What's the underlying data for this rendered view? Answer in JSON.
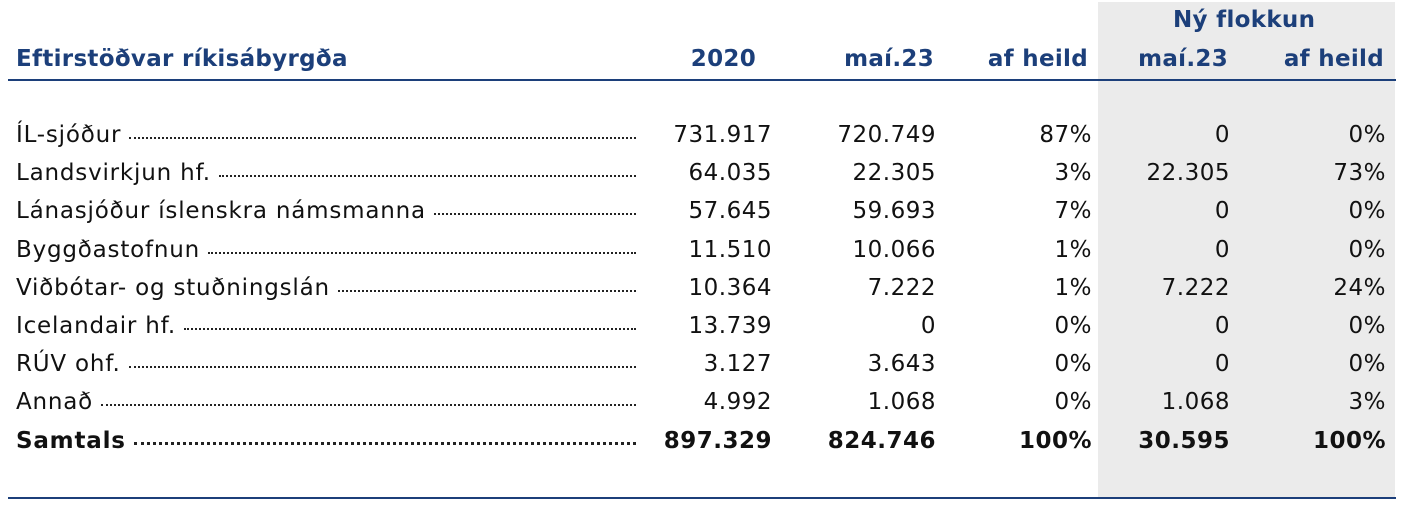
{
  "table": {
    "title": "Eftirstöðvar ríkisábyrgða",
    "group_header": "Ný flokkun",
    "columns": [
      "2020",
      "maí.23",
      "af heild",
      "maí.23",
      "af heild"
    ],
    "rows": [
      {
        "label": "ÍL-sjóður",
        "values": [
          "731.917",
          "720.749",
          "87%",
          "0",
          "0%"
        ]
      },
      {
        "label": "Landsvirkjun hf.",
        "values": [
          "64.035",
          "22.305",
          "3%",
          "22.305",
          "73%"
        ]
      },
      {
        "label": "Lánasjóður íslenskra námsmanna",
        "values": [
          "57.645",
          "59.693",
          "7%",
          "0",
          "0%"
        ]
      },
      {
        "label": "Byggðastofnun",
        "values": [
          "11.510",
          "10.066",
          "1%",
          "0",
          "0%"
        ]
      },
      {
        "label": "Viðbótar- og stuðningslán",
        "values": [
          "10.364",
          "7.222",
          "1%",
          "7.222",
          "24%"
        ]
      },
      {
        "label": "Icelandair hf.",
        "values": [
          "13.739",
          "0",
          "0%",
          "0",
          "0%"
        ]
      },
      {
        "label": "RÚV ohf.",
        "values": [
          "3.127",
          "3.643",
          "0%",
          "0",
          "0%"
        ]
      },
      {
        "label": "Annað",
        "values": [
          "4.992",
          "1.068",
          "0%",
          "1.068",
          "3%"
        ]
      }
    ],
    "total": {
      "label": "Samtals",
      "values": [
        "897.329",
        "824.746",
        "100%",
        "30.595",
        "100%"
      ]
    }
  },
  "colors": {
    "header": "#1c3f7a",
    "shade": "#ebebeb"
  }
}
